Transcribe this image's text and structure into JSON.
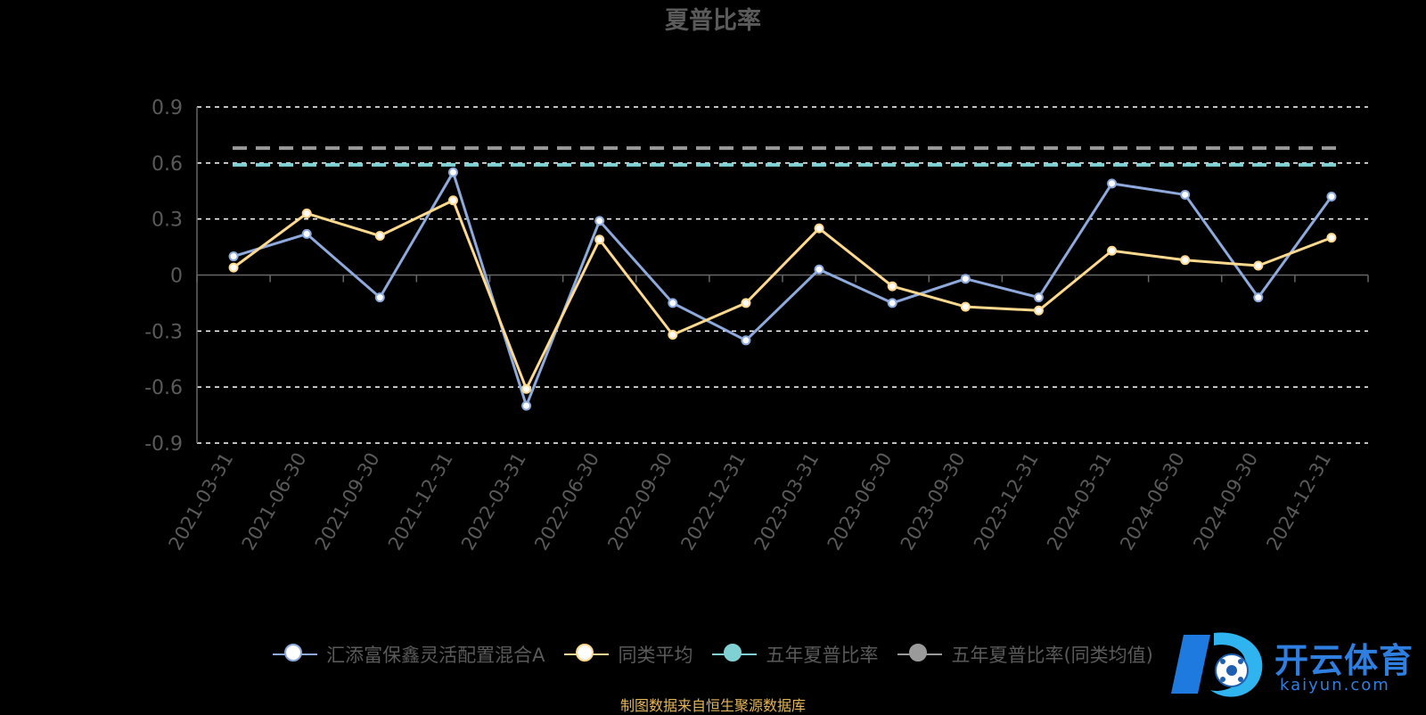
{
  "chart_data": {
    "type": "line",
    "title": "夏普比率",
    "categories": [
      "2021-03-31",
      "2021-06-30",
      "2021-09-30",
      "2021-12-31",
      "2022-03-31",
      "2022-06-30",
      "2022-09-30",
      "2022-12-31",
      "2023-03-31",
      "2023-06-30",
      "2023-09-30",
      "2023-12-31",
      "2024-03-31",
      "2024-06-30",
      "2024-09-30",
      "2024-12-31"
    ],
    "ylim": [
      -0.9,
      0.9
    ],
    "yticks": [
      0.9,
      0.6,
      0.3,
      0,
      -0.3,
      -0.6,
      -0.9
    ],
    "ytick_labels": [
      "0.9",
      "0.6",
      "0.3",
      "0",
      "-0.3",
      "-0.6",
      "-0.9"
    ],
    "grid": true,
    "legend_position": "bottom",
    "series": [
      {
        "name": "汇添富保鑫灵活配置混合A",
        "color": "#8eaadc",
        "values": [
          0.1,
          0.22,
          -0.12,
          0.55,
          -0.7,
          0.29,
          -0.15,
          -0.35,
          0.03,
          -0.15,
          -0.02,
          -0.12,
          0.49,
          0.43,
          -0.12,
          0.42
        ]
      },
      {
        "name": "同类平均",
        "color": "#ffd98e",
        "values": [
          0.04,
          0.33,
          0.21,
          0.4,
          -0.61,
          0.19,
          -0.32,
          -0.15,
          0.25,
          -0.06,
          -0.17,
          -0.19,
          0.13,
          0.08,
          0.05,
          0.2
        ]
      }
    ],
    "reference_lines": [
      {
        "name": "五年夏普比率",
        "color": "#7fd1d4",
        "value": 0.59
      },
      {
        "name": "五年夏普比率(同类均值)",
        "color": "#9a9a9a",
        "value": 0.68
      }
    ]
  },
  "legend": [
    {
      "label": "汇添富保鑫灵活配置混合A",
      "color": "#8eaadc"
    },
    {
      "label": "同类平均",
      "color": "#ffd98e"
    },
    {
      "label": "五年夏普比率",
      "color": "#7fd1d4"
    },
    {
      "label": "五年夏普比率(同类均值)",
      "color": "#9a9a9a"
    }
  ],
  "footer": "制图数据来自恒生聚源数据库",
  "watermark": {
    "main": "开云体育",
    "sub": "kaiyun.com"
  }
}
